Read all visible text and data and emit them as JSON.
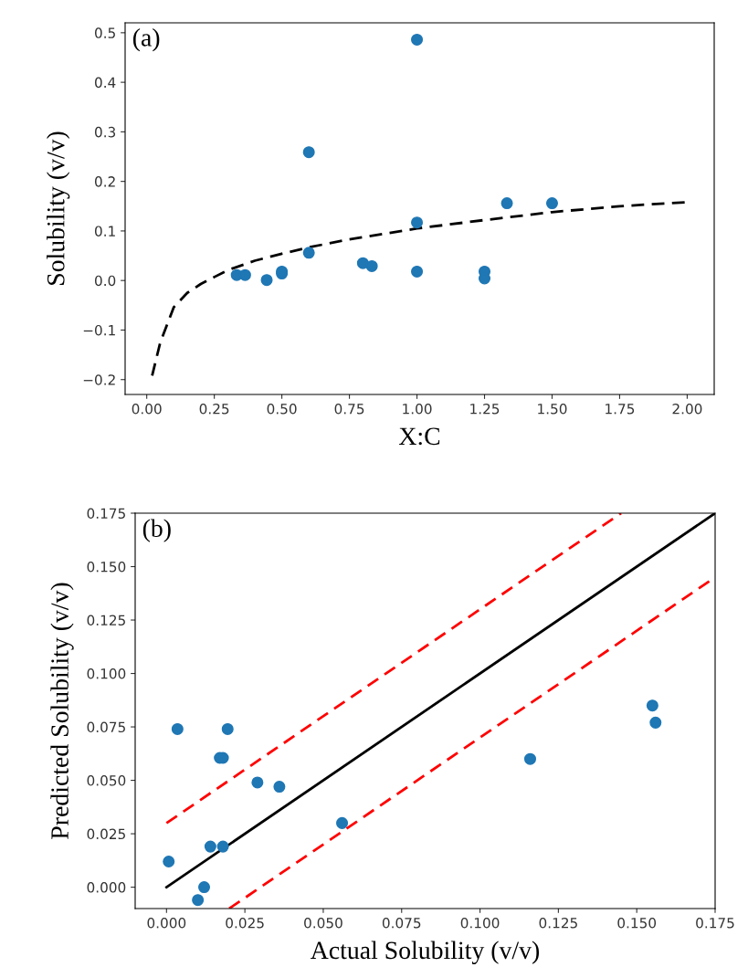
{
  "chart_data": [
    {
      "type": "scatter",
      "xlabel": "X:C",
      "ylabel": "Solubility (v/v)",
      "annotations": [
        "(a)"
      ],
      "xlim": [
        -0.08,
        2.1
      ],
      "ylim": [
        -0.23,
        0.52
      ],
      "xticks": [
        {
          "value": 0,
          "label": "0.00"
        },
        0.25,
        {
          "value": 0.5,
          "label": "0.50"
        },
        0.75,
        {
          "value": 1,
          "label": "1.00"
        },
        1.25,
        {
          "value": 1.5,
          "label": "1.50"
        },
        1.75,
        {
          "value": 2,
          "label": "2.00"
        }
      ],
      "yticks": [
        {
          "value": -0.2,
          "label": "−0.2"
        },
        {
          "value": -0.1,
          "label": "−0.1"
        },
        {
          "value": 0,
          "label": "0.0"
        },
        0.1,
        0.2,
        0.3,
        0.4,
        0.5
      ],
      "marker": "circle",
      "series": [
        {
          "color": "#1f77b4",
          "x": [
            0.333,
            0.364,
            0.444,
            0.5,
            0.5,
            0.6,
            0.6,
            0.8,
            0.833,
            1.0,
            1.0,
            1.0,
            1.25,
            1.25,
            1.333,
            1.5
          ],
          "values": [
            0.011,
            0.011,
            0.001,
            0.014,
            0.018,
            0.056,
            0.259,
            0.035,
            0.029,
            0.486,
            0.117,
            0.018,
            0.018,
            0.004,
            0.156,
            0.156
          ]
        },
        {
          "type": "line",
          "marker": "none",
          "color": "#000000",
          "line_style": "dashed",
          "x": [
            0.02,
            0.05,
            0.1,
            0.15,
            0.2,
            0.25,
            0.3,
            0.4,
            0.5,
            0.6,
            0.75,
            1.0,
            1.25,
            1.5,
            1.75,
            2.0
          ],
          "values": [
            -0.192,
            -0.125,
            -0.054,
            -0.025,
            -0.007,
            0.007,
            0.021,
            0.04,
            0.054,
            0.067,
            0.083,
            0.105,
            0.122,
            0.138,
            0.15,
            0.158
          ]
        }
      ]
    },
    {
      "type": "scatter",
      "xlabel": "Actual Solubility (v/v)",
      "ylabel": "Predicted Solubility (v/v)",
      "annotations": [
        "(b)"
      ],
      "xlim": [
        -0.01,
        0.175
      ],
      "ylim": [
        -0.01,
        0.175
      ],
      "xticks": [
        {
          "value": 0,
          "label": "0.000"
        },
        0.025,
        {
          "value": 0.05,
          "label": "0.050"
        },
        0.075,
        {
          "value": 0.1,
          "label": "0.100"
        },
        0.125,
        {
          "value": 0.15,
          "label": "0.150"
        },
        0.175
      ],
      "yticks": [
        {
          "value": 0,
          "label": "0.000"
        },
        0.025,
        {
          "value": 0.05,
          "label": "0.050"
        },
        0.075,
        {
          "value": 0.1,
          "label": "0.100"
        },
        0.125,
        {
          "value": 0.15,
          "label": "0.150"
        },
        0.175
      ],
      "marker": "circle",
      "series": [
        {
          "color": "#1f77b4",
          "x": [
            0.0007,
            0.0035,
            0.0195,
            0.017,
            0.018,
            0.029,
            0.036,
            0.056,
            0.014,
            0.018,
            0.012,
            0.01,
            0.116,
            0.155,
            0.156
          ],
          "values": [
            0.012,
            0.074,
            0.074,
            0.0605,
            0.0605,
            0.049,
            0.047,
            0.03,
            0.019,
            0.019,
            0.0,
            -0.006,
            0.06,
            0.085,
            0.077
          ]
        },
        {
          "type": "line",
          "marker": "none",
          "color": "#000000",
          "line_style": "solid",
          "x": [
            0.0,
            0.175
          ],
          "values": [
            0.0,
            0.175
          ]
        },
        {
          "type": "line",
          "marker": "none",
          "color": "#ff0000",
          "line_style": "dashed",
          "x": [
            0.0,
            0.145
          ],
          "values": [
            0.03,
            0.175
          ]
        },
        {
          "type": "line",
          "marker": "none",
          "color": "#ff0000",
          "line_style": "dashed",
          "x": [
            0.02,
            0.175
          ],
          "values": [
            -0.01,
            0.145
          ]
        }
      ]
    }
  ]
}
